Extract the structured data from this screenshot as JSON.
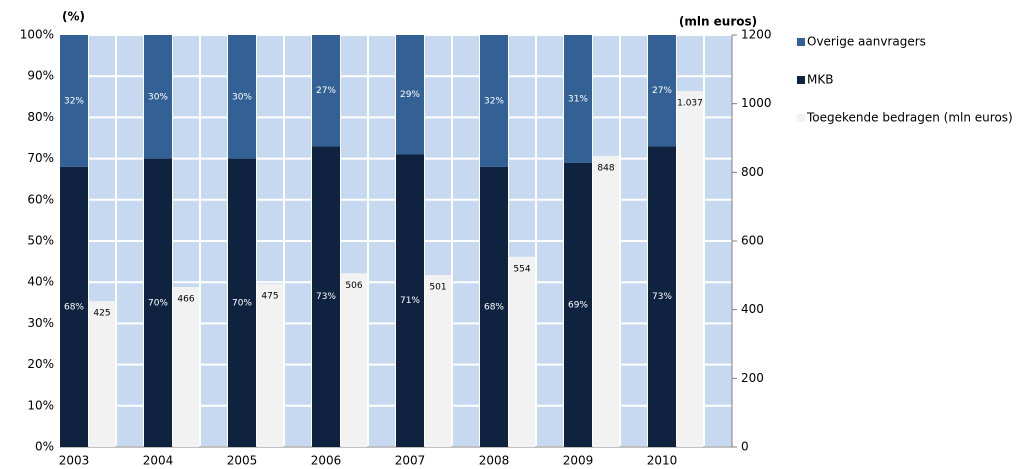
{
  "chart_data": {
    "type": "bar",
    "y_label": "(%)",
    "y2_label": "(mln euros)",
    "categories": [
      "2003",
      "2004",
      "2005",
      "2006",
      "2007",
      "2008",
      "2009",
      "2010"
    ],
    "series": [
      {
        "name": "MKB",
        "color": "#0f2341",
        "values": [
          68,
          70,
          70,
          73,
          71,
          68,
          69,
          73
        ],
        "value_labels": [
          "68%",
          "70%",
          "70%",
          "73%",
          "71%",
          "68%",
          "69%",
          "73%"
        ]
      },
      {
        "name": "Overige aanvragers",
        "color": "#336195",
        "values": [
          32,
          30,
          30,
          27,
          29,
          32,
          31,
          27
        ],
        "value_labels": [
          "32%",
          "30%",
          "30%",
          "27%",
          "29%",
          "32%",
          "31%",
          "27%"
        ]
      },
      {
        "name": "Toegekende bedragen (mln euros)",
        "color": "#f2f2f2",
        "axis": "y2",
        "values": [
          425,
          466,
          475,
          506,
          501,
          554,
          848,
          1037
        ],
        "value_labels": [
          "425",
          "466",
          "475",
          "506",
          "501",
          "554",
          "848",
          "1.037"
        ]
      }
    ],
    "ylim": [
      0,
      100
    ],
    "yticks": [
      {
        "value": 0,
        "label": "0%"
      },
      {
        "value": 10,
        "label": "10%"
      },
      {
        "value": 20,
        "label": "20%"
      },
      {
        "value": 30,
        "label": "30%"
      },
      {
        "value": 40,
        "label": "40%"
      },
      {
        "value": 50,
        "label": "50%"
      },
      {
        "value": 60,
        "label": "60%"
      },
      {
        "value": 70,
        "label": "70%"
      },
      {
        "value": 80,
        "label": "80%"
      },
      {
        "value": 90,
        "label": "90%"
      },
      {
        "value": 100,
        "label": "100%"
      }
    ],
    "y2lim": [
      0,
      1200
    ],
    "y2ticks": [
      0,
      200,
      400,
      600,
      800,
      1000,
      1200
    ],
    "grid": true,
    "legend": "right"
  }
}
